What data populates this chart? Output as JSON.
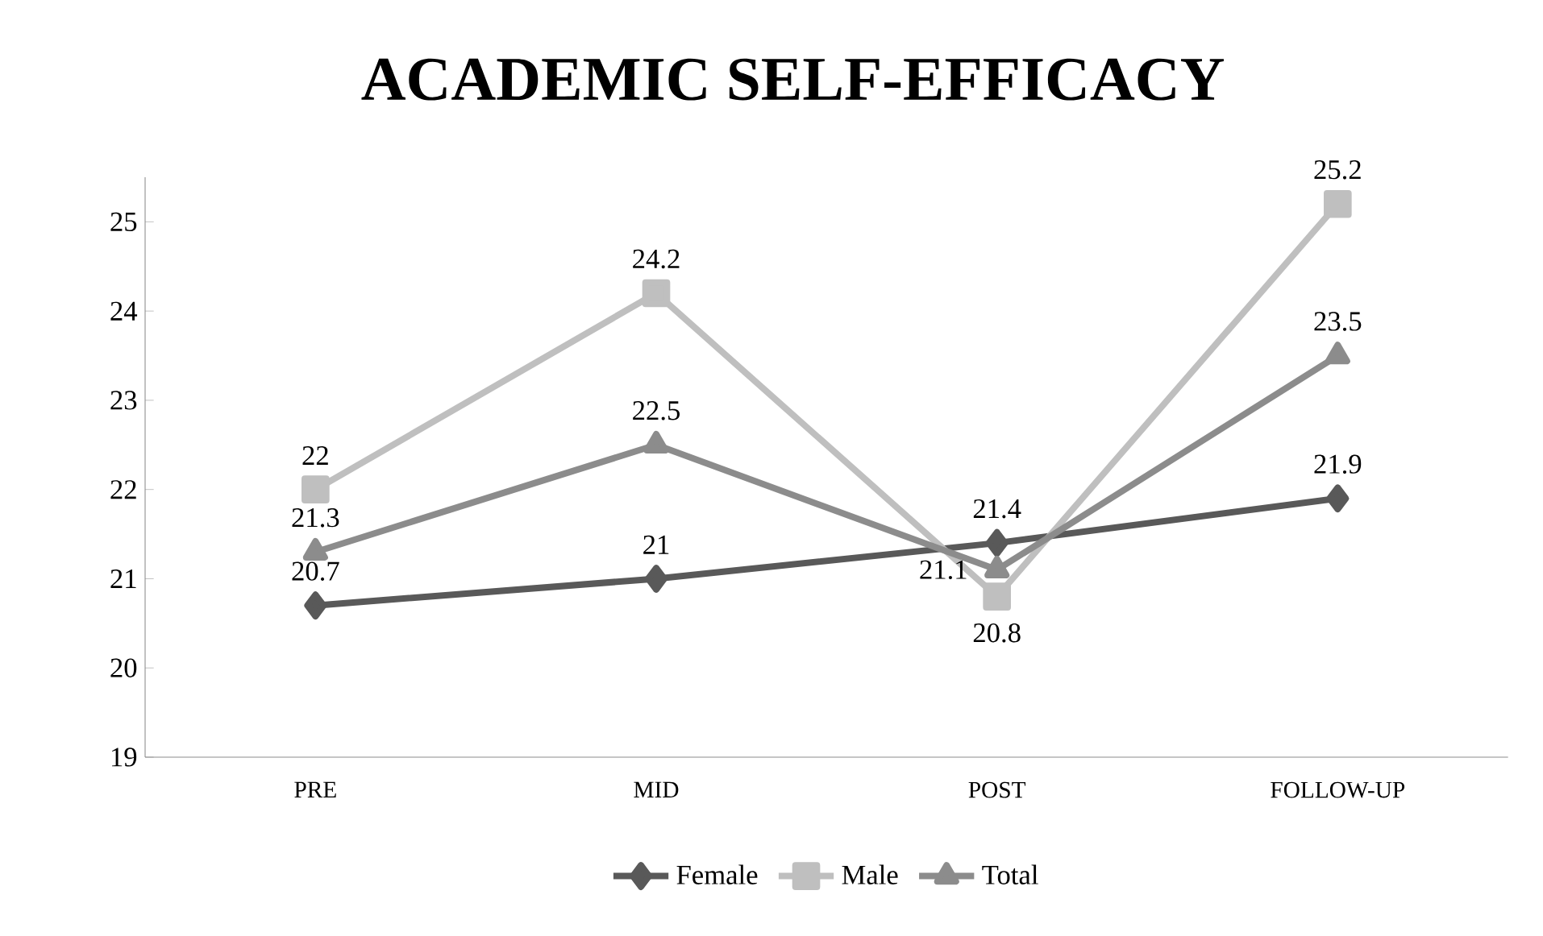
{
  "chart_data": {
    "type": "line",
    "title": "ACADEMIC SELF-EFFICACY",
    "categories": [
      "PRE",
      "MID",
      "POST",
      "FOLLOW-UP"
    ],
    "series": [
      {
        "name": "Female",
        "color": "#595959",
        "marker": "diamond",
        "values": [
          20.7,
          21,
          21.4,
          21.9
        ]
      },
      {
        "name": "Male",
        "color": "#bfbfbf",
        "marker": "square",
        "values": [
          22,
          24.2,
          20.8,
          25.2
        ]
      },
      {
        "name": "Total",
        "color": "#8c8c8c",
        "marker": "triangle",
        "values": [
          21.3,
          22.5,
          21.1,
          23.5
        ]
      }
    ],
    "ylim": [
      19,
      25.5
    ],
    "yticks": [
      19,
      20,
      21,
      22,
      23,
      24,
      25
    ],
    "data_labels": true,
    "legend": "bottom",
    "grid": false,
    "line_style": "solid"
  }
}
